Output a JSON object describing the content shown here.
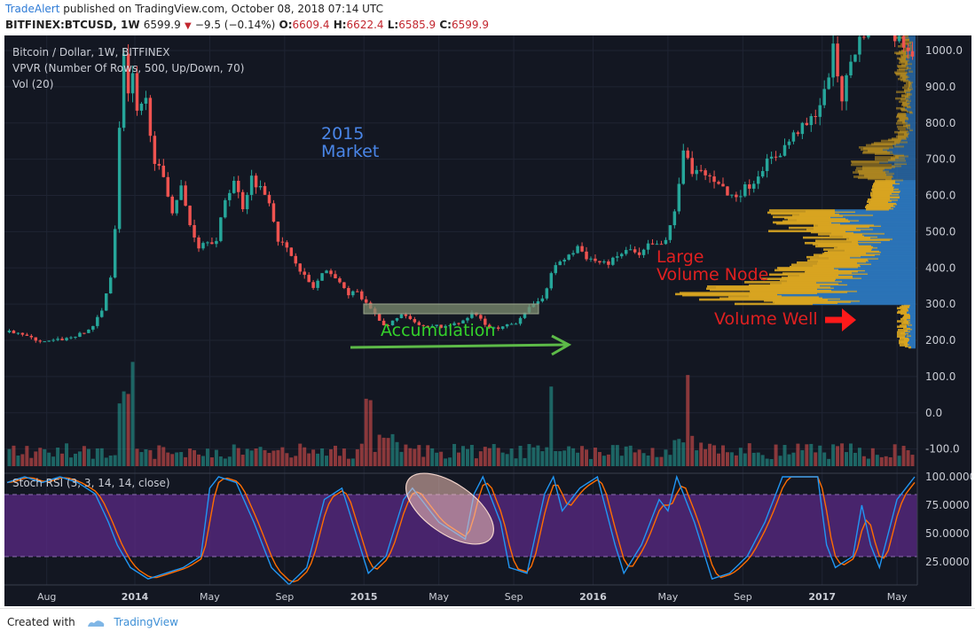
{
  "header": {
    "author": "TradeAlert",
    "published_text": "published on TradingView.com, October 08, 2018 07:14 UTC",
    "symbol": "BITFINEX:BTCUSD, 1W",
    "last": "6599.9",
    "change": "−9.5 (−0.14%)",
    "open_label": "O:",
    "open": "6609.4",
    "high_label": "H:",
    "high": "6622.4",
    "low_label": "L:",
    "low": "6585.9",
    "close_label": "C:",
    "close": "6599.9"
  },
  "legend": {
    "line1": "Bitcoin / Dollar, 1W, BITFINEX",
    "line2": "VPVR (Number Of Rows, 500, Up/Down, 70)",
    "line3": "Vol (20)"
  },
  "annotations": {
    "market_line1": "2015",
    "market_line2": "Market",
    "accumulation": "Accumulation",
    "large_node_line1": "Large",
    "large_node_line2": "Volume Node",
    "volume_well": "Volume Well"
  },
  "footer": {
    "created_with": "Created with",
    "brand": "TradingView"
  },
  "colors": {
    "background": "#131722",
    "up": "#26a69a",
    "down": "#ef5350",
    "vp_up": "#2b74b8",
    "vp_down": "#d9a520",
    "rsi_k": "#2196f3",
    "rsi_d": "#ff6d00",
    "rsi_band": "#5b2a86",
    "annotation_blue": "#4a86e8",
    "annotation_green": "#34d12b",
    "annotation_red": "#e02020"
  },
  "chart_data": [
    {
      "type": "candlestick",
      "title": "Bitcoin / Dollar, 1W, BITFINEX",
      "ylim": [
        -130,
        1040
      ],
      "yticks": [
        "1000.0",
        "900.0",
        "800.0",
        "700.0",
        "600.0",
        "500.0",
        "400.0",
        "300.0",
        "200.0",
        "100.0",
        "0.0",
        "-100.0"
      ],
      "ytick_values": [
        1000,
        900,
        800,
        700,
        600,
        500,
        400,
        300,
        200,
        100,
        0,
        -100
      ],
      "xticks": [
        "Aug",
        "2014",
        "May",
        "Sep",
        "2015",
        "May",
        "Sep",
        "2016",
        "May",
        "Sep",
        "2017",
        "May"
      ],
      "xtick_weeks": [
        9,
        29,
        46,
        63,
        81,
        98,
        115,
        133,
        150,
        167,
        185,
        202
      ],
      "weeks_total": 206,
      "close_anchors": [
        [
          0,
          222
        ],
        [
          3,
          224
        ],
        [
          6,
          205
        ],
        [
          9,
          195
        ],
        [
          14,
          205
        ],
        [
          18,
          220
        ],
        [
          20,
          240
        ],
        [
          22,
          280
        ],
        [
          24,
          380
        ],
        [
          25,
          510
        ],
        [
          26,
          780
        ],
        [
          27,
          1000
        ],
        [
          28,
          880
        ],
        [
          29,
          920
        ],
        [
          30,
          820
        ],
        [
          32,
          860
        ],
        [
          34,
          700
        ],
        [
          36,
          640
        ],
        [
          38,
          560
        ],
        [
          40,
          620
        ],
        [
          42,
          520
        ],
        [
          44,
          460
        ],
        [
          46,
          480
        ],
        [
          48,
          470
        ],
        [
          50,
          590
        ],
        [
          52,
          640
        ],
        [
          54,
          570
        ],
        [
          56,
          650
        ],
        [
          58,
          620
        ],
        [
          60,
          590
        ],
        [
          62,
          480
        ],
        [
          64,
          450
        ],
        [
          66,
          420
        ],
        [
          68,
          375
        ],
        [
          70,
          345
        ],
        [
          72,
          380
        ],
        [
          74,
          390
        ],
        [
          76,
          355
        ],
        [
          78,
          330
        ],
        [
          80,
          330
        ],
        [
          82,
          300
        ],
        [
          84,
          275
        ],
        [
          86,
          240
        ],
        [
          88,
          250
        ],
        [
          90,
          270
        ],
        [
          92,
          255
        ],
        [
          94,
          240
        ],
        [
          96,
          235
        ],
        [
          98,
          240
        ],
        [
          100,
          235
        ],
        [
          102,
          250
        ],
        [
          104,
          250
        ],
        [
          106,
          275
        ],
        [
          108,
          260
        ],
        [
          110,
          235
        ],
        [
          112,
          230
        ],
        [
          114,
          240
        ],
        [
          116,
          250
        ],
        [
          118,
          280
        ],
        [
          120,
          295
        ],
        [
          122,
          320
        ],
        [
          124,
          380
        ],
        [
          126,
          420
        ],
        [
          128,
          430
        ],
        [
          130,
          460
        ],
        [
          132,
          430
        ],
        [
          134,
          420
        ],
        [
          136,
          410
        ],
        [
          138,
          420
        ],
        [
          140,
          440
        ],
        [
          142,
          450
        ],
        [
          144,
          430
        ],
        [
          146,
          460
        ],
        [
          148,
          460
        ],
        [
          150,
          470
        ],
        [
          152,
          560
        ],
        [
          154,
          720
        ],
        [
          156,
          670
        ],
        [
          158,
          660
        ],
        [
          160,
          650
        ],
        [
          162,
          640
        ],
        [
          164,
          600
        ],
        [
          166,
          600
        ],
        [
          168,
          620
        ],
        [
          170,
          640
        ],
        [
          172,
          680
        ],
        [
          174,
          700
        ],
        [
          176,
          720
        ],
        [
          178,
          750
        ],
        [
          180,
          780
        ],
        [
          182,
          790
        ],
        [
          184,
          830
        ],
        [
          186,
          880
        ],
        [
          188,
          1000
        ],
        [
          190,
          870
        ],
        [
          192,
          970
        ],
        [
          194,
          1030
        ],
        [
          196,
          1080
        ],
        [
          198,
          1100
        ],
        [
          200,
          1100
        ],
        [
          202,
          1040
        ],
        [
          206,
          1000
        ]
      ],
      "volume_spike_weeks": [
        25,
        26,
        27,
        28,
        81,
        82,
        123,
        154
      ]
    },
    {
      "type": "volume_profile",
      "name": "VPVR (Number Of Rows, 500, Up/Down, 70)",
      "high_volume_range": [
        300,
        640
      ],
      "peak_price": 330,
      "low_volume_range": [
        180,
        300
      ]
    },
    {
      "type": "line",
      "title": "Stoch RSI (3, 3, 14, 14, close)",
      "ylim": [
        0,
        100
      ],
      "yticks": [
        "100.0000",
        "75.0000",
        "50.0000",
        "25.0000"
      ],
      "ytick_values": [
        100,
        75,
        50,
        25
      ],
      "bands": [
        20,
        80
      ],
      "series": [
        {
          "name": "K",
          "anchors": [
            [
              0,
              95
            ],
            [
              4,
              100
            ],
            [
              8,
              95
            ],
            [
              12,
              100
            ],
            [
              16,
              95
            ],
            [
              20,
              85
            ],
            [
              23,
              60
            ],
            [
              25,
              40
            ],
            [
              28,
              20
            ],
            [
              32,
              10
            ],
            [
              36,
              15
            ],
            [
              40,
              20
            ],
            [
              44,
              30
            ],
            [
              46,
              90
            ],
            [
              48,
              100
            ],
            [
              52,
              95
            ],
            [
              56,
              60
            ],
            [
              60,
              20
            ],
            [
              64,
              5
            ],
            [
              68,
              20
            ],
            [
              72,
              80
            ],
            [
              76,
              90
            ],
            [
              80,
              40
            ],
            [
              82,
              15
            ],
            [
              86,
              30
            ],
            [
              90,
              80
            ],
            [
              92,
              90
            ],
            [
              96,
              70
            ],
            [
              98,
              60
            ],
            [
              100,
              55
            ],
            [
              104,
              45
            ],
            [
              106,
              85
            ],
            [
              108,
              100
            ],
            [
              112,
              60
            ],
            [
              114,
              20
            ],
            [
              118,
              15
            ],
            [
              122,
              85
            ],
            [
              124,
              100
            ],
            [
              126,
              70
            ],
            [
              130,
              90
            ],
            [
              134,
              100
            ],
            [
              138,
              40
            ],
            [
              140,
              15
            ],
            [
              144,
              40
            ],
            [
              148,
              80
            ],
            [
              150,
              70
            ],
            [
              152,
              100
            ],
            [
              156,
              60
            ],
            [
              160,
              10
            ],
            [
              164,
              15
            ],
            [
              168,
              30
            ],
            [
              172,
              60
            ],
            [
              176,
              100
            ],
            [
              180,
              100
            ],
            [
              184,
              100
            ],
            [
              186,
              40
            ],
            [
              188,
              20
            ],
            [
              192,
              30
            ],
            [
              194,
              75
            ],
            [
              196,
              40
            ],
            [
              198,
              20
            ],
            [
              202,
              80
            ],
            [
              206,
              100
            ]
          ]
        }
      ]
    }
  ]
}
